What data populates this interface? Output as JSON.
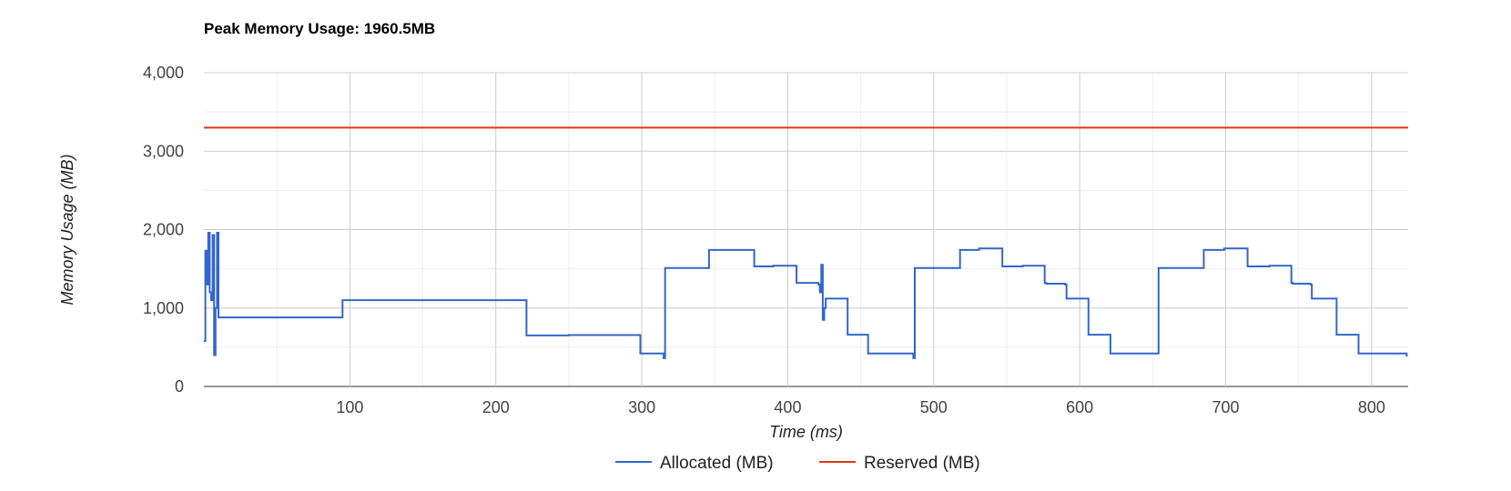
{
  "chart_data": {
    "type": "line",
    "title": "Peak Memory Usage: 1960.5MB",
    "xlabel": "Time (ms)",
    "ylabel": "Memory Usage (MB)",
    "xlim": [
      0,
      825
    ],
    "ylim": [
      0,
      4000
    ],
    "x_ticks": [
      100,
      200,
      300,
      400,
      500,
      600,
      700,
      800
    ],
    "y_ticks": [
      0,
      1000,
      2000,
      3000,
      4000
    ],
    "y_tick_labels": [
      "0",
      "1,000",
      "2,000",
      "3,000",
      "4,000"
    ],
    "grid": true,
    "legend_position": "bottom",
    "series": [
      {
        "name": "Allocated (MB)",
        "color": "#3366cc",
        "step": true,
        "x": [
          0,
          1,
          2,
          3,
          4,
          5,
          6,
          7,
          8,
          9,
          10,
          94,
          95,
          220,
          221,
          250,
          298,
          299,
          314,
          315,
          316,
          317,
          345,
          346,
          376,
          377,
          385,
          390,
          391,
          406,
          407,
          421,
          422,
          423,
          424,
          425,
          426,
          440,
          441,
          454,
          455,
          485,
          486,
          487,
          517,
          518,
          530,
          531,
          532,
          546,
          547,
          560,
          561,
          575,
          576,
          577,
          590,
          591,
          592,
          593,
          605,
          606,
          620,
          621,
          653,
          654,
          684,
          685,
          698,
          699,
          700,
          714,
          715,
          729,
          730,
          744,
          745,
          746,
          758,
          759,
          760,
          761,
          775,
          776,
          790,
          791,
          824
        ],
        "values": [
          580,
          1730,
          1300,
          1960,
          1200,
          1100,
          1930,
          400,
          1000,
          1960,
          880,
          880,
          1100,
          1100,
          650,
          655,
          655,
          420,
          420,
          360,
          1510,
          1510,
          1510,
          1740,
          1740,
          1530,
          1530,
          1540,
          1540,
          1320,
          1320,
          1300,
          1200,
          1550,
          850,
          1000,
          1120,
          1120,
          660,
          660,
          420,
          420,
          360,
          1510,
          1510,
          1740,
          1740,
          1760,
          1760,
          1760,
          1530,
          1530,
          1540,
          1540,
          1320,
          1310,
          1300,
          1120,
          1120,
          1120,
          1120,
          660,
          660,
          420,
          420,
          1510,
          1510,
          1740,
          1740,
          1760,
          1760,
          1760,
          1530,
          1530,
          1540,
          1540,
          1320,
          1310,
          1300,
          1120,
          1120,
          1120,
          1120,
          660,
          660,
          420,
          380
        ]
      },
      {
        "name": "Reserved (MB)",
        "color": "#dc3912",
        "step": false,
        "x": [
          0,
          825
        ],
        "values": [
          3300,
          3300
        ]
      }
    ]
  }
}
